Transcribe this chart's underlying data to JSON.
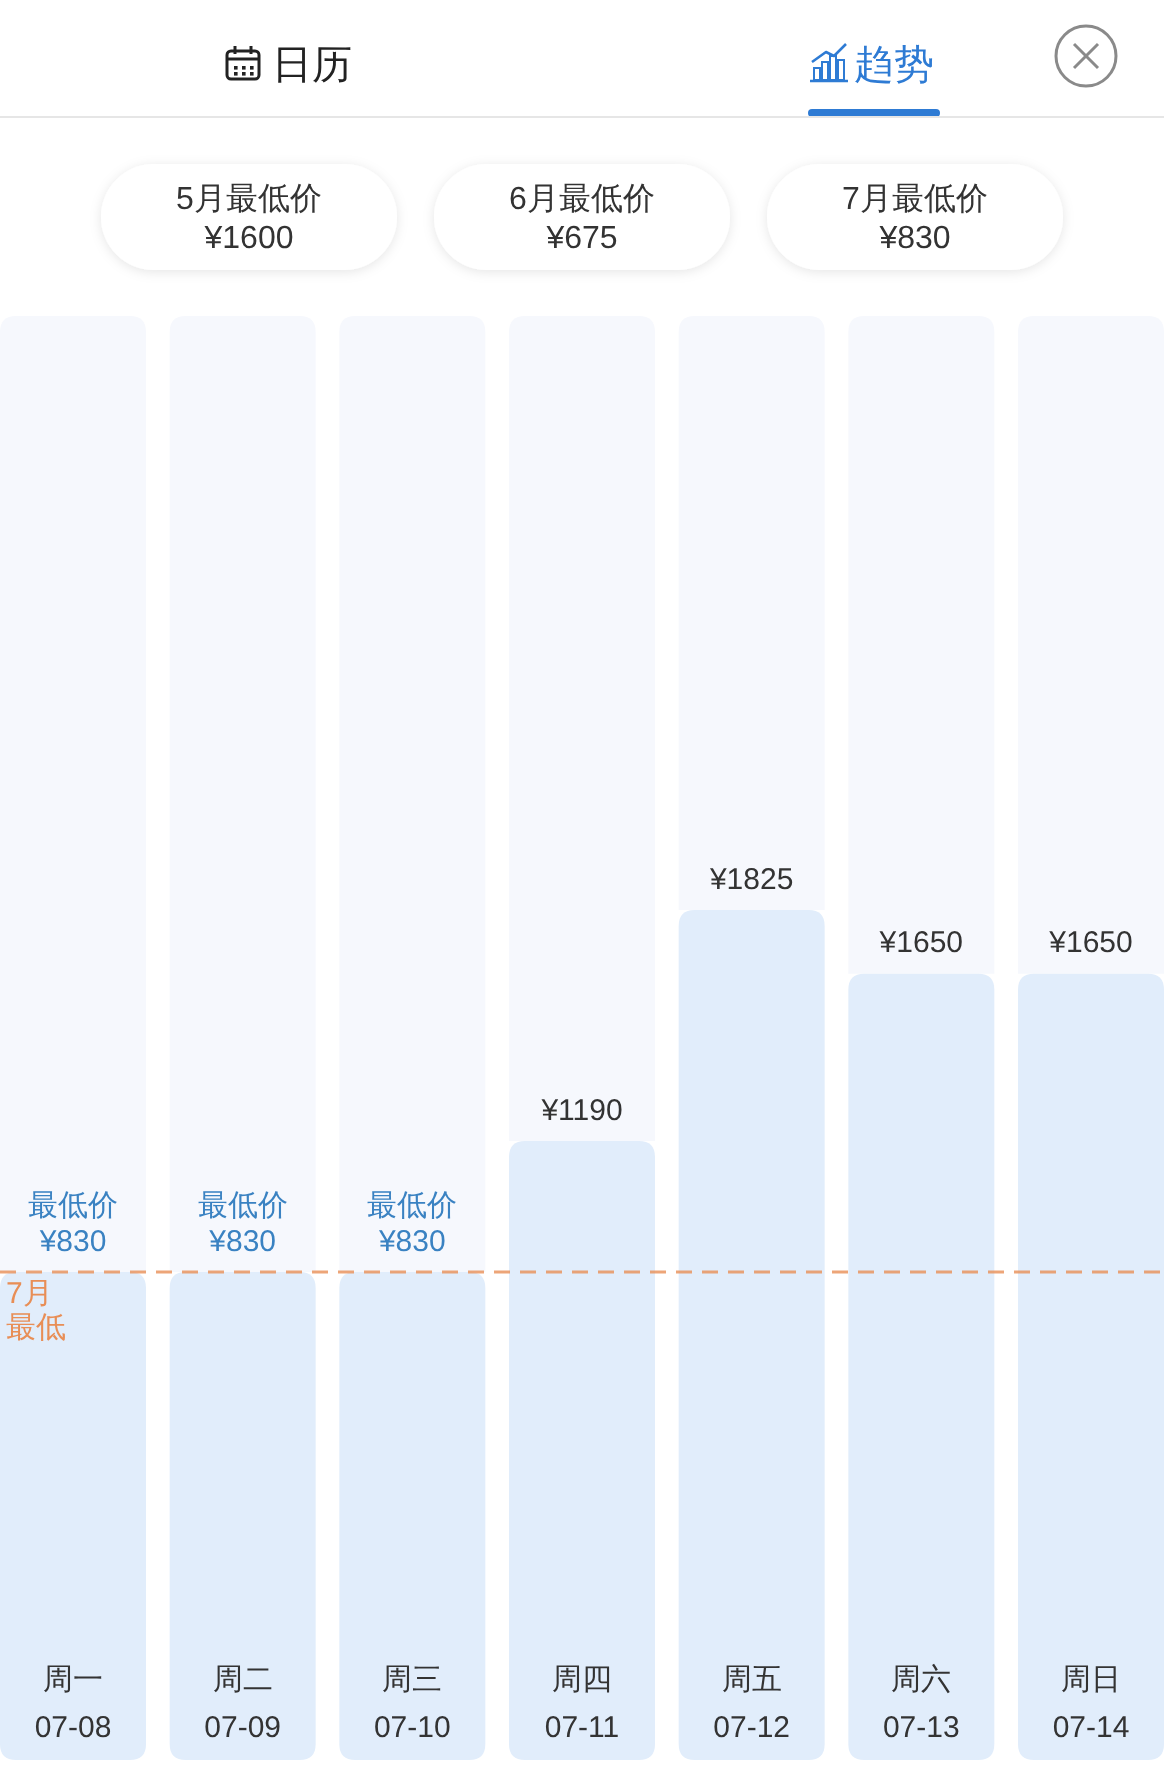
{
  "chart_data": {
    "type": "bar",
    "title": "趋势",
    "annotations": [
      "日历",
      "5月最低价\n¥1600",
      "6月最低价\n¥675",
      "7月最低价\n¥830"
    ],
    "categories": [
      "周一\n07-08",
      "周二\n07-09",
      "周三\n07-10",
      "周四\n07-11",
      "周五\n07-12",
      "周六\n07-13",
      "周日\n07-14"
    ],
    "values": [
      830,
      830,
      830,
      1190,
      1825,
      1650,
      1650
    ],
    "color": "#e1edfb",
    "value_labels": [
      "最低价\n¥830",
      "最低价\n¥830",
      "最低价\n¥830",
      "¥1190",
      "¥1825",
      "¥1650",
      "¥1650"
    ],
    "ref_lines": [
      {
        "axis": "y",
        "value": 830,
        "label": "7月最低",
        "color": "#e88e56",
        "line_style": "dashed"
      }
    ]
  }
}
